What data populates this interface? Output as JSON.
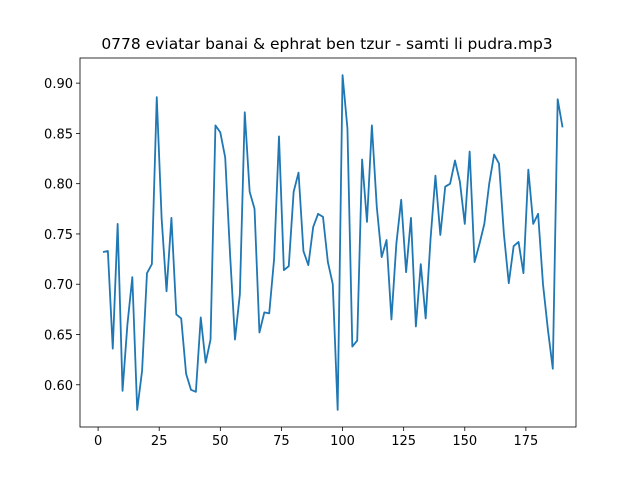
{
  "chart_data": {
    "type": "line",
    "title": "0778 eviatar banai & ephrat ben tzur - samti li pudra.mp3",
    "x": [
      2,
      4,
      6,
      8,
      10,
      12,
      14,
      16,
      18,
      20,
      22,
      24,
      26,
      28,
      30,
      32,
      34,
      36,
      38,
      40,
      42,
      44,
      46,
      48,
      50,
      52,
      54,
      56,
      58,
      60,
      62,
      64,
      66,
      68,
      70,
      72,
      74,
      76,
      78,
      80,
      82,
      84,
      86,
      88,
      90,
      92,
      94,
      96,
      98,
      100,
      102,
      104,
      106,
      108,
      110,
      112,
      114,
      116,
      118,
      120,
      122,
      124,
      126,
      128,
      130,
      132,
      134,
      136,
      138,
      140,
      142,
      144,
      146,
      148,
      150,
      152,
      154,
      156,
      158,
      160,
      162,
      164,
      166,
      168,
      170,
      172,
      174,
      176,
      178,
      180,
      182,
      184,
      186,
      188,
      190
    ],
    "series": [
      {
        "color": "#1f77b4",
        "values": [
          0.732,
          0.733,
          0.636,
          0.76,
          0.594,
          0.66,
          0.707,
          0.575,
          0.614,
          0.711,
          0.72,
          0.886,
          0.765,
          0.693,
          0.766,
          0.67,
          0.666,
          0.611,
          0.595,
          0.593,
          0.667,
          0.622,
          0.645,
          0.858,
          0.851,
          0.826,
          0.729,
          0.645,
          0.69,
          0.871,
          0.792,
          0.775,
          0.652,
          0.672,
          0.671,
          0.725,
          0.847,
          0.714,
          0.718,
          0.792,
          0.811,
          0.733,
          0.719,
          0.757,
          0.77,
          0.767,
          0.722,
          0.7,
          0.575,
          0.908,
          0.855,
          0.638,
          0.644,
          0.824,
          0.762,
          0.858,
          0.777,
          0.727,
          0.744,
          0.665,
          0.74,
          0.784,
          0.712,
          0.766,
          0.658,
          0.72,
          0.666,
          0.745,
          0.808,
          0.749,
          0.797,
          0.8,
          0.823,
          0.802,
          0.76,
          0.832,
          0.722,
          0.74,
          0.76,
          0.8,
          0.829,
          0.82,
          0.75,
          0.701,
          0.738,
          0.742,
          0.711,
          0.814,
          0.76,
          0.77,
          0.7,
          0.655,
          0.616,
          0.884,
          0.856
        ]
      }
    ],
    "xlim": [
      -7.4,
      195.5
    ],
    "ylim": [
      0.558,
      0.925
    ],
    "xticks": [
      0,
      25,
      50,
      75,
      100,
      125,
      150,
      175
    ],
    "yticks": [
      {
        "value": 0.6,
        "label": "0.60"
      },
      {
        "value": 0.65,
        "label": "0.65"
      },
      {
        "value": 0.7,
        "label": "0.70"
      },
      {
        "value": 0.75,
        "label": "0.75"
      },
      {
        "value": 0.8,
        "label": "0.80"
      },
      {
        "value": 0.85,
        "label": "0.85"
      },
      {
        "value": 0.9,
        "label": "0.90"
      }
    ]
  }
}
